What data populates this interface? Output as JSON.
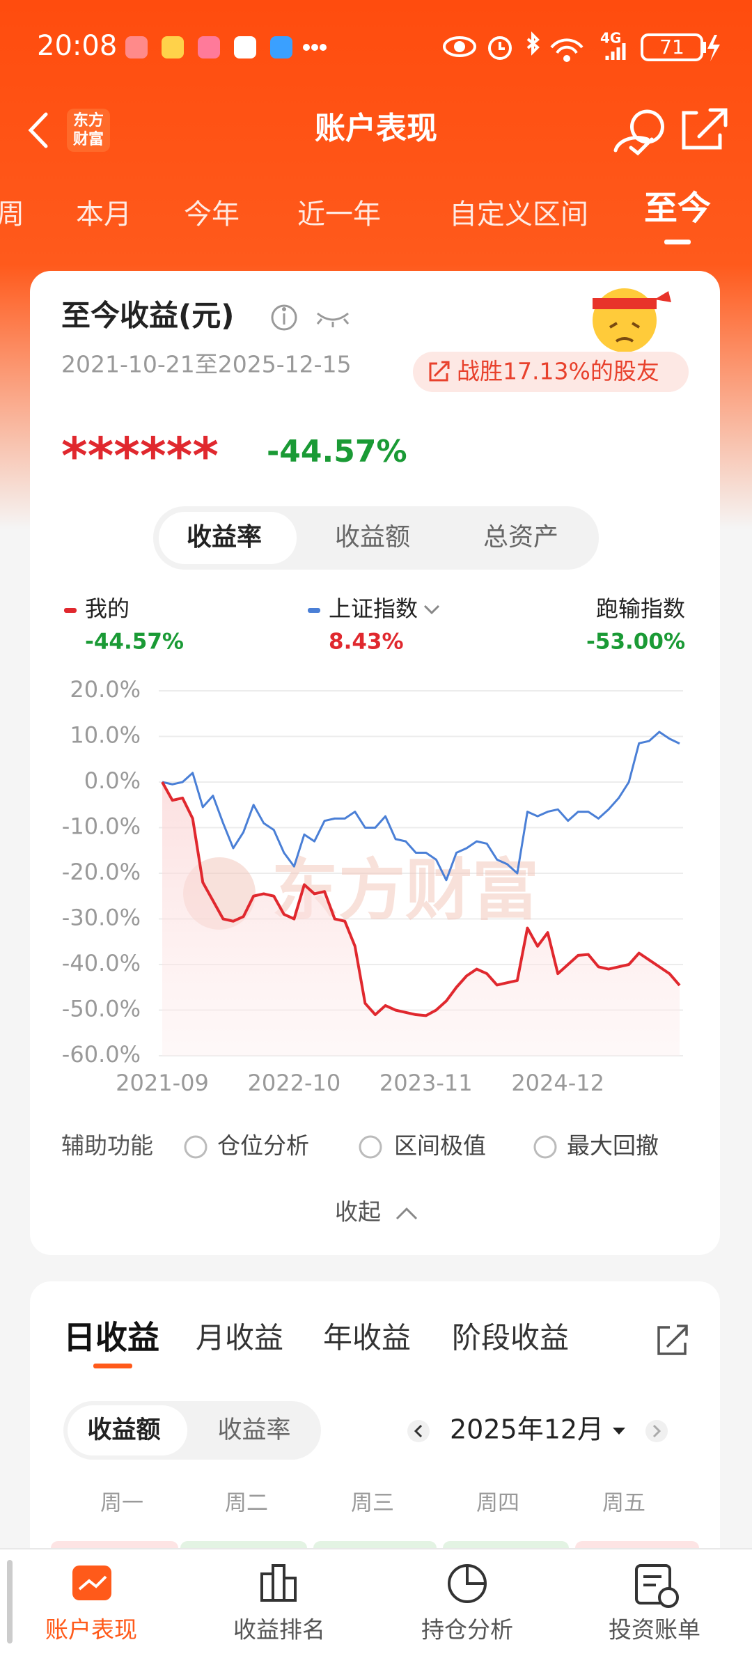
{
  "status_bar": {
    "time": "20:08",
    "network": "4G",
    "battery": "71"
  },
  "header": {
    "title": "账户表现",
    "logo": [
      "东方",
      "财富"
    ]
  },
  "period_tabs": {
    "items": [
      "周",
      "本月",
      "今年",
      "近一年",
      "自定义区间",
      "至今"
    ],
    "active": 5
  },
  "summary": {
    "title": "至今收益(元)",
    "date_range": "2021-10-21至2025-12-15",
    "beat": "战胜17.13%的股友",
    "amount": "******",
    "return": "-44.57%"
  },
  "metric_toggle": {
    "items": [
      "收益率",
      "收益额",
      "总资产"
    ],
    "active": 0
  },
  "chart_data": {
    "type": "line",
    "watermark": "东方财富",
    "grid": true,
    "categories": [
      "2021-09",
      null,
      null,
      null,
      null,
      null,
      null,
      null,
      null,
      null,
      null,
      null,
      null,
      "2022-10",
      null,
      null,
      null,
      null,
      null,
      null,
      null,
      null,
      null,
      null,
      null,
      null,
      "2023-11",
      null,
      null,
      null,
      null,
      null,
      null,
      null,
      null,
      null,
      null,
      null,
      null,
      "2024-12",
      null,
      null,
      null,
      null,
      null,
      null,
      null,
      null,
      null,
      null,
      null,
      null
    ],
    "ylim": [
      -60,
      20
    ],
    "yticks": [
      {
        "value": 20,
        "label": "20.0%"
      },
      {
        "value": 10,
        "label": "10.0%"
      },
      {
        "value": 0,
        "label": "0.0%"
      },
      {
        "value": -10,
        "label": "-10.0%"
      },
      {
        "value": -20,
        "label": "-20.0%"
      },
      {
        "value": -30,
        "label": "-30.0%"
      },
      {
        "value": -40,
        "label": "-40.0%"
      },
      {
        "value": -50,
        "label": "-50.0%"
      },
      {
        "value": -60,
        "label": "-60.0%"
      }
    ],
    "series": [
      {
        "name": "我的",
        "color": "#e0282e",
        "return_label": "-44.57%",
        "values": [
          0,
          -4,
          -3.5,
          -8,
          -22,
          -26,
          -30,
          -30.5,
          -29.5,
          -25,
          -24.5,
          -25,
          -29,
          -30,
          -22.5,
          -24.5,
          -24,
          -30,
          -30.5,
          -36,
          -48.5,
          -51,
          -49,
          -50,
          -50.5,
          -51,
          -51.2,
          -50,
          -48,
          -45,
          -42.5,
          -41,
          -42,
          -44.5,
          -44,
          -43.5,
          -32,
          -36,
          -33,
          -42,
          -40,
          -38,
          -37.8,
          -40.5,
          -41,
          -40.5,
          -40,
          -37.5,
          -39,
          -40.5,
          -42,
          -44.57
        ]
      },
      {
        "name": "上证指数",
        "color": "#4a7fd6",
        "return_label": "8.43%",
        "values": [
          0,
          -0.5,
          0,
          2,
          -5.5,
          -3,
          -9,
          -14.5,
          -11,
          -5,
          -9,
          -10.5,
          -15.5,
          -18.5,
          -11.5,
          -13,
          -8.5,
          -8,
          -8,
          -6.5,
          -10,
          -10,
          -7.5,
          -12.5,
          -13,
          -15.5,
          -15.5,
          -17,
          -21.5,
          -15.5,
          -14.5,
          -13,
          -13.5,
          -17,
          -18,
          -20,
          -6.5,
          -7.5,
          -6.5,
          -6,
          -8.5,
          -6.5,
          -6.5,
          -8,
          -6,
          -3.5,
          0,
          8.5,
          9,
          11,
          9.5,
          8.43
        ]
      }
    ],
    "underperform": {
      "label": "跑输指数",
      "value": "-53.00%"
    }
  },
  "aux": {
    "label": "辅助功能",
    "options": [
      "仓位分析",
      "区间极值",
      "最大回撤"
    ],
    "collapse": "收起"
  },
  "income_tabs": {
    "items": [
      "日收益",
      "月收益",
      "年收益",
      "阶段收益"
    ],
    "active": 0
  },
  "income_toggle": {
    "items": [
      "收益额",
      "收益率"
    ],
    "active": 0
  },
  "calendar": {
    "month": "2025年12月",
    "weekdays": [
      "周一",
      "周二",
      "周三",
      "周四",
      "周五"
    ]
  },
  "bottom_nav": {
    "items": [
      "账户表现",
      "收益排名",
      "持仓分析",
      "投资账单"
    ],
    "active": 0
  }
}
